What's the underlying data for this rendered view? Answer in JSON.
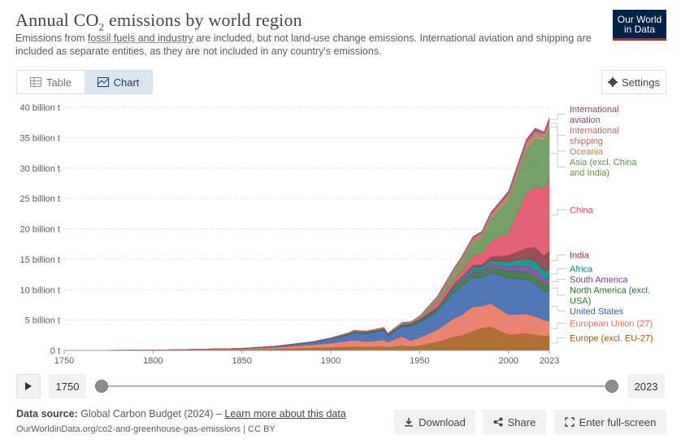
{
  "header": {
    "title_main": "Annual CO",
    "title_sub": "2",
    "title_end": " emissions by world region",
    "subtitle_pre": "Emissions from ",
    "subtitle_link": "fossil fuels and industry",
    "subtitle_post": " are included, but not land-use change emissions. International aviation and shipping are included as separate entities, as they are not included in any country's emissions.",
    "logo_line1": "Our World",
    "logo_line2": "in Data"
  },
  "tabs": {
    "table_label": "Table",
    "chart_label": "Chart",
    "active": "chart"
  },
  "settings_label": "Settings",
  "icons": {
    "table": "table-icon",
    "chart": "chart-icon",
    "settings": "gear-icon",
    "play": "play-icon",
    "download": "download-icon",
    "share": "share-icon",
    "fullscreen": "fullscreen-icon"
  },
  "timeline": {
    "start_label": "1750",
    "end_label": "2023",
    "range": [
      1750,
      2023
    ]
  },
  "footer": {
    "source_label": "Data source:",
    "source_text": " Global Carbon Budget (2024) – ",
    "source_link": "Learn more about this data",
    "url_text": "OurWorldinData.org/co2-and-greenhouse-gas-emissions | CC BY",
    "download_label": "Download",
    "share_label": "Share",
    "fullscreen_label": "Enter full-screen"
  },
  "chart_data": {
    "type": "area",
    "stacked": true,
    "x": [
      1750,
      1800,
      1850,
      1870,
      1890,
      1900,
      1910,
      1913,
      1920,
      1930,
      1932,
      1940,
      1945,
      1950,
      1960,
      1970,
      1973,
      1980,
      1985,
      1990,
      2000,
      2010,
      2015,
      2020,
      2023
    ],
    "x_ticks": [
      1750,
      1800,
      1850,
      1900,
      1950,
      2000,
      2023
    ],
    "y_ticks": [
      0,
      5,
      10,
      15,
      20,
      25,
      30,
      35,
      40
    ],
    "y_tick_labels": [
      "0 t",
      "5 billion t",
      "10 billion t",
      "15 billion t",
      "20 billion t",
      "25 billion t",
      "30 billion t",
      "35 billion t",
      "40 billion t"
    ],
    "ylim": [
      0,
      40
    ],
    "unit": "billion t",
    "grid": "horizontal-dashed",
    "legend_position": "right",
    "series": [
      {
        "name": "Europe (excl. EU-27)",
        "color": "#a2560f",
        "values": [
          0.01,
          0.03,
          0.15,
          0.25,
          0.4,
          0.5,
          0.6,
          0.65,
          0.55,
          0.65,
          0.5,
          0.8,
          0.6,
          0.8,
          1.4,
          2.3,
          2.4,
          3.2,
          3.7,
          3.9,
          2.6,
          2.8,
          2.6,
          2.4,
          2.4
        ]
      },
      {
        "name": "European Union (27)",
        "color": "#e56e5a",
        "values": [
          0,
          0.02,
          0.12,
          0.3,
          0.55,
          0.7,
          0.95,
          1.05,
          0.9,
          1.1,
          0.85,
          1.5,
          1.0,
          1.3,
          2.0,
          3.1,
          3.3,
          4.0,
          3.6,
          3.8,
          3.3,
          3.2,
          3.0,
          2.6,
          2.4
        ]
      },
      {
        "name": "United States",
        "color": "#3360a9",
        "values": [
          0,
          0.01,
          0.05,
          0.15,
          0.4,
          0.65,
          1.0,
          1.2,
          1.3,
          1.5,
          1.0,
          1.6,
          2.4,
          2.5,
          2.9,
          4.3,
          4.7,
          4.8,
          4.6,
          5.1,
          6.0,
          5.7,
          5.4,
          4.7,
          4.9
        ]
      },
      {
        "name": "North America (excl. USA)",
        "color": "#2c6a2c",
        "values": [
          0,
          0,
          0.01,
          0.02,
          0.05,
          0.07,
          0.1,
          0.12,
          0.13,
          0.15,
          0.12,
          0.15,
          0.2,
          0.25,
          0.4,
          0.65,
          0.7,
          0.8,
          0.8,
          0.85,
          1.1,
          1.2,
          1.2,
          1.1,
          1.1
        ]
      },
      {
        "name": "South America",
        "color": "#6d3e91",
        "values": [
          0,
          0,
          0,
          0.01,
          0.01,
          0.02,
          0.03,
          0.03,
          0.03,
          0.04,
          0.04,
          0.05,
          0.05,
          0.07,
          0.13,
          0.25,
          0.28,
          0.4,
          0.45,
          0.5,
          0.75,
          1.0,
          1.15,
          1.0,
          1.05
        ]
      },
      {
        "name": "Africa",
        "color": "#00847e",
        "values": [
          0,
          0,
          0,
          0,
          0.01,
          0.01,
          0.02,
          0.02,
          0.03,
          0.04,
          0.04,
          0.05,
          0.06,
          0.09,
          0.15,
          0.3,
          0.33,
          0.53,
          0.58,
          0.65,
          0.9,
          1.2,
          1.35,
          1.3,
          1.45
        ]
      },
      {
        "name": "India",
        "color": "#883039",
        "values": [
          0,
          0,
          0,
          0,
          0.01,
          0.02,
          0.03,
          0.04,
          0.04,
          0.05,
          0.05,
          0.06,
          0.07,
          0.08,
          0.12,
          0.2,
          0.22,
          0.3,
          0.4,
          0.6,
          1.0,
          1.7,
          2.3,
          2.5,
          3.05
        ]
      },
      {
        "name": "China",
        "color": "#e0455e",
        "values": [
          0,
          0,
          0,
          0,
          0,
          0,
          0.01,
          0.01,
          0.01,
          0.02,
          0.02,
          0.03,
          0.02,
          0.08,
          0.8,
          0.8,
          0.95,
          1.5,
          1.9,
          2.5,
          3.7,
          9.0,
          10.0,
          10.9,
          11.9
        ]
      },
      {
        "name": "Asia (excl. China and India)",
        "color": "#5d8f4d",
        "values": [
          0,
          0,
          0,
          0.01,
          0.03,
          0.05,
          0.07,
          0.08,
          0.09,
          0.1,
          0.1,
          0.18,
          0.12,
          0.25,
          0.55,
          1.2,
          1.4,
          2.3,
          2.6,
          3.7,
          5.5,
          7.3,
          7.9,
          8.1,
          8.3
        ]
      },
      {
        "name": "Oceania",
        "color": "#c0835a",
        "values": [
          0,
          0,
          0,
          0,
          0,
          0.01,
          0.01,
          0.01,
          0.01,
          0.02,
          0.02,
          0.02,
          0.03,
          0.04,
          0.07,
          0.13,
          0.15,
          0.2,
          0.24,
          0.3,
          0.38,
          0.45,
          0.45,
          0.45,
          0.45
        ]
      },
      {
        "name": "International shipping",
        "color": "#b86a62",
        "values": [
          0,
          0,
          0,
          0,
          0,
          0.05,
          0.08,
          0.1,
          0.1,
          0.12,
          0.1,
          0.15,
          0.15,
          0.2,
          0.3,
          0.45,
          0.48,
          0.5,
          0.45,
          0.5,
          0.55,
          0.7,
          0.7,
          0.62,
          0.7
        ]
      },
      {
        "name": "International aviation",
        "color": "#8c4569",
        "values": [
          0,
          0,
          0,
          0,
          0,
          0,
          0,
          0,
          0,
          0,
          0,
          0.01,
          0.02,
          0.03,
          0.1,
          0.2,
          0.22,
          0.23,
          0.27,
          0.32,
          0.45,
          0.5,
          0.55,
          0.3,
          0.6
        ]
      }
    ]
  }
}
